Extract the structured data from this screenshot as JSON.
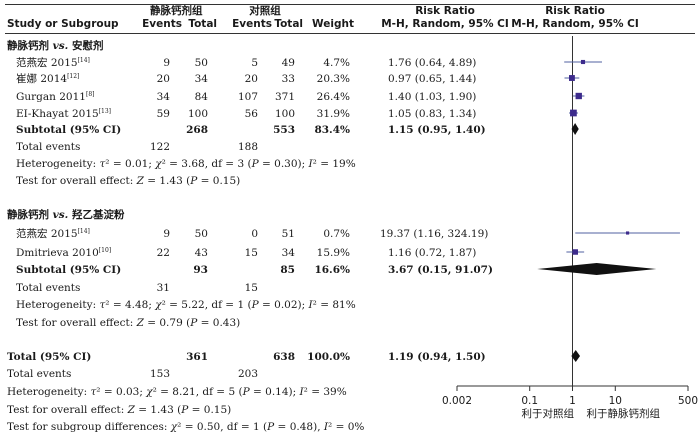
{
  "header": {
    "col_study": "Study or Subgroup",
    "col_group1": "静脉钙剂组",
    "col_group2": "对照组",
    "events": "Events",
    "total": "Total",
    "weight": "Weight",
    "rr_title": "Risk Ratio",
    "rr_method": "M-H, Random, 95% CI"
  },
  "subgroups": [
    {
      "title_pre": "静脉钙剂 ",
      "title_vs": "vs.",
      "title_post": " 安慰剂",
      "studies": [
        {
          "name": "范燕宏 2015",
          "ref": "[14]",
          "e1": "9",
          "t1": "50",
          "e2": "5",
          "t2": "49",
          "weight": "4.7%",
          "ci": "1.76 (0.64, 4.89)"
        },
        {
          "name": "崔娜 2014",
          "ref": "[12]",
          "e1": "20",
          "t1": "34",
          "e2": "20",
          "t2": "33",
          "weight": "20.3%",
          "ci": "0.97 (0.65, 1.44)"
        },
        {
          "name": "Gurgan 2011",
          "ref": "[8]",
          "e1": "34",
          "t1": "84",
          "e2": "107",
          "t2": "371",
          "weight": "26.4%",
          "ci": "1.40 (1.03, 1.90)"
        },
        {
          "name": "EI-Khayat 2015",
          "ref": "[13]",
          "e1": "59",
          "t1": "100",
          "e2": "56",
          "t2": "100",
          "weight": "31.9%",
          "ci": "1.05 (0.83, 1.34)"
        }
      ],
      "subtotal": {
        "label": "Subtotal (95% CI)",
        "t1": "268",
        "t2": "553",
        "weight": "83.4%",
        "ci": "1.15 (0.95, 1.40)"
      },
      "total_events": {
        "label": "Total events",
        "e1": "122",
        "e2": "188"
      },
      "heterogeneity": {
        "label": "Heterogeneity:",
        "tau2": "0.01",
        "chi2": "3.68",
        "df": "3",
        "p": "0.30",
        "i2": "19%"
      },
      "overall_effect": {
        "label": "Test for overall effect:",
        "z": "1.43",
        "p": "0.15"
      }
    },
    {
      "title_pre": "静脉钙剂 ",
      "title_vs": "vs.",
      "title_post": " 羟乙基淀粉",
      "studies": [
        {
          "name": "范燕宏 2015",
          "ref": "[14]",
          "e1": "9",
          "t1": "50",
          "e2": "0",
          "t2": "51",
          "weight": "0.7%",
          "ci": "19.37 (1.16, 324.19)"
        },
        {
          "name": "Dmitrieva 2010",
          "ref": "[10]",
          "e1": "22",
          "t1": "43",
          "e2": "15",
          "t2": "34",
          "weight": "15.9%",
          "ci": "1.16 (0.72, 1.87)"
        }
      ],
      "subtotal": {
        "label": "Subtotal (95% CI)",
        "t1": "93",
        "t2": "85",
        "weight": "16.6%",
        "ci": "3.67 (0.15, 91.07)"
      },
      "total_events": {
        "label": "Total events",
        "e1": "31",
        "e2": "15"
      },
      "heterogeneity": {
        "label": "Heterogeneity:",
        "tau2": "4.48",
        "chi2": "5.22",
        "df": "1",
        "p": "0.02",
        "i2": "81%"
      },
      "overall_effect": {
        "label": "Test for overall effect:",
        "z": "0.79",
        "p": "0.43"
      }
    }
  ],
  "overall": {
    "total": {
      "label": "Total (95% CI)",
      "t1": "361",
      "t2": "638",
      "weight": "100.0%",
      "ci": "1.19 (0.94, 1.50)"
    },
    "total_events": {
      "label": "Total events",
      "e1": "153",
      "e2": "203"
    },
    "heterogeneity": {
      "label": "Heterogeneity:",
      "tau2": "0.03",
      "chi2": "8.21",
      "df": "5",
      "p": "0.14",
      "i2": "39%"
    },
    "overall_effect": {
      "label": "Test for overall effect:",
      "z": "1.43",
      "p": "0.15"
    },
    "subgroup_diff": {
      "label": "Test for subgroup differences:",
      "chi2": "0.50",
      "df": "1",
      "p": "0.48",
      "i2": "0%"
    }
  },
  "chart_data": {
    "type": "forest",
    "scale": "log",
    "xlim": [
      0.002,
      500
    ],
    "ticks": [
      "0.002",
      "0.1",
      "1",
      "10",
      "500"
    ],
    "tick_values": [
      0.002,
      0.1,
      1,
      10,
      500
    ],
    "null_line": 1,
    "favours_left": "利于对照组",
    "favours_right": "利于静脉钙剂组",
    "marker_color": "#3d2b8c",
    "studies": [
      {
        "rr": 1.76,
        "lo": 0.64,
        "hi": 4.89,
        "weight": 4.7
      },
      {
        "rr": 0.97,
        "lo": 0.65,
        "hi": 1.44,
        "weight": 20.3
      },
      {
        "rr": 1.4,
        "lo": 1.03,
        "hi": 1.9,
        "weight": 26.4
      },
      {
        "rr": 1.05,
        "lo": 0.83,
        "hi": 1.34,
        "weight": 31.9
      },
      {
        "rr": 19.37,
        "lo": 1.16,
        "hi": 324.19,
        "weight": 0.7
      },
      {
        "rr": 1.16,
        "lo": 0.72,
        "hi": 1.87,
        "weight": 15.9
      }
    ],
    "pooled": [
      {
        "label": "Subtotal (95% CI)",
        "rr": 1.15,
        "lo": 0.95,
        "hi": 1.4
      },
      {
        "label": "Subtotal (95% CI)",
        "rr": 3.67,
        "lo": 0.15,
        "hi": 91.07
      },
      {
        "label": "Total (95% CI)",
        "rr": 1.19,
        "lo": 0.94,
        "hi": 1.5
      }
    ]
  }
}
